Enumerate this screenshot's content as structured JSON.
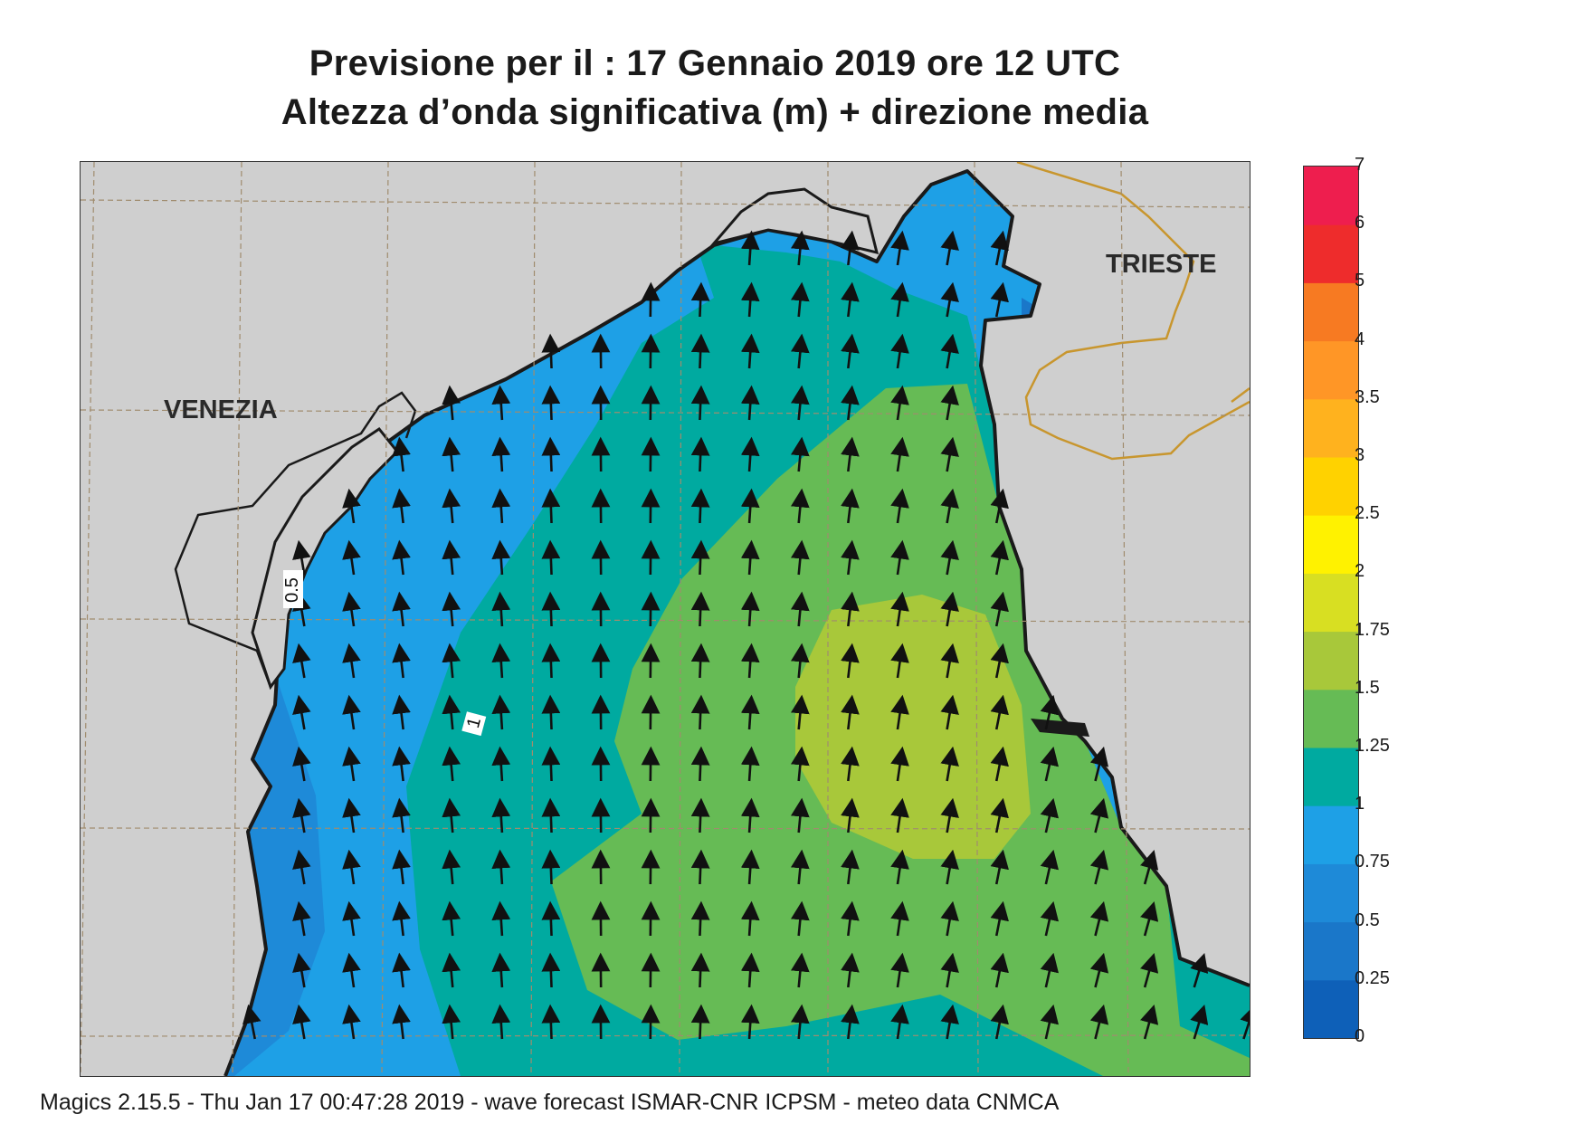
{
  "title_line1": "Previsione per il  :  17  Gennaio  2019   ore 12 UTC",
  "title_line2": "Altezza d’onda significativa (m) + direzione media",
  "footer": "Magics 2.15.5 - Thu Jan 17 00:47:28 2019 - wave forecast  ISMAR-CNR  ICPSM - meteo data   CNMCA",
  "map": {
    "cities": [
      {
        "name": "VENEZIA"
      },
      {
        "name": "TRIESTE"
      }
    ],
    "contour_labels": [
      "0.5",
      "1"
    ],
    "colors": {
      "land": "#cfcfcf",
      "coast": "#1a1a1a",
      "border": "#c8962e",
      "grid": "#a08c6e"
    }
  },
  "colorbar": {
    "ticks": [
      "0",
      "0.25",
      "0.5",
      "0.75",
      "1",
      "1.25",
      "1.5",
      "1.75",
      "2",
      "2.5",
      "3",
      "3.5",
      "4",
      "5",
      "6",
      "7"
    ],
    "colors": [
      "#0e60b8",
      "#1a77c9",
      "#1e8ad8",
      "#1ea0e6",
      "#00aaa0",
      "#66bb55",
      "#a8c83a",
      "#d8df22",
      "#fff200",
      "#ffd200",
      "#ffb21e",
      "#ff9626",
      "#f77a22",
      "#ee2c2c",
      "#ee1e4e"
    ]
  }
}
